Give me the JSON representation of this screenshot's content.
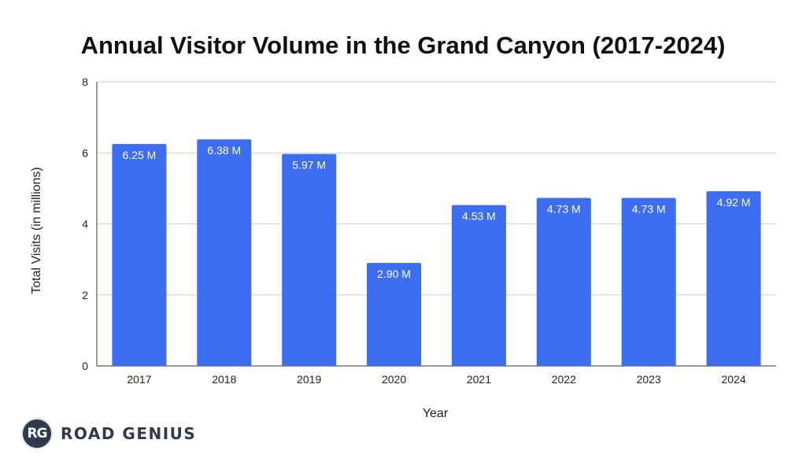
{
  "chart_data": {
    "type": "bar",
    "title": "Annual Visitor Volume in the Grand Canyon (2017-2024)",
    "xlabel": "Year",
    "ylabel": "Total Visits (in millions)",
    "categories": [
      "2017",
      "2018",
      "2019",
      "2020",
      "2021",
      "2022",
      "2023",
      "2024"
    ],
    "values": [
      6.25,
      6.38,
      5.97,
      2.9,
      4.53,
      4.73,
      4.73,
      4.92
    ],
    "data_labels": [
      "6.25 M",
      "6.38 M",
      "5.97 M",
      "2.90 M",
      "4.53 M",
      "4.73 M",
      "4.73 M",
      "4.92 M"
    ],
    "ylim": [
      0,
      8
    ],
    "yticks": [
      0,
      2,
      4,
      6,
      8
    ],
    "grid": true,
    "bar_color": "#3d6ef2"
  },
  "brand": {
    "logo_initials": "RG",
    "logo_text": "ROAD GENIUS"
  }
}
